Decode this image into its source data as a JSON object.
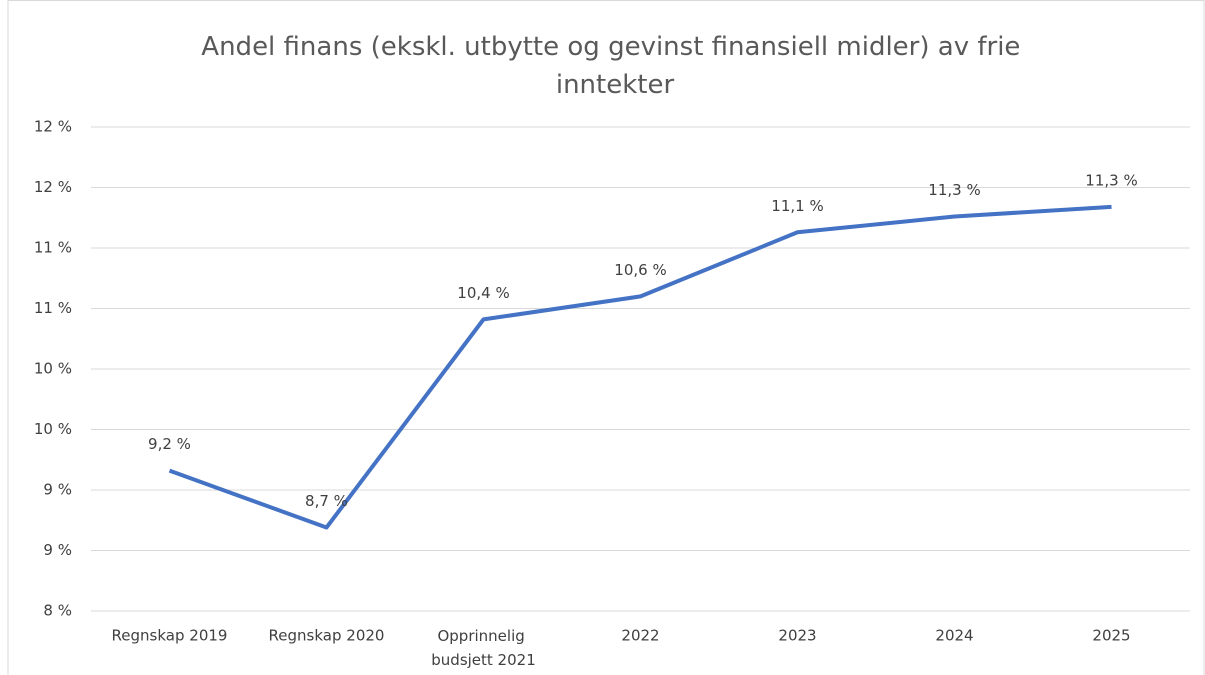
{
  "chart_data": {
    "type": "line",
    "title": "Andel finans (ekskl. utbytte og gevinst finansiell midler) av frie inntekter",
    "categories": [
      "Regnskap 2019",
      "Regnskap 2020",
      "Opprinnelig budsjett 2021",
      "2022",
      "2023",
      "2024",
      "2025"
    ],
    "series": [
      {
        "name": "Andel finans",
        "color": "#4472c4",
        "values": [
          9.16,
          8.69,
          10.41,
          10.6,
          11.13,
          11.26,
          11.34
        ],
        "value_labels": [
          "9,2 %",
          "8,7 %",
          "10,4 %",
          "10,6 %",
          "11,1 %",
          "11,3 %",
          "11,3 %"
        ]
      }
    ],
    "ylim": [
      8,
      12
    ],
    "yticks": [
      {
        "value": 8,
        "label": "8 %"
      },
      {
        "value": 8.5,
        "label": "9 %"
      },
      {
        "value": 9,
        "label": "9 %"
      },
      {
        "value": 9.5,
        "label": "10 %"
      },
      {
        "value": 10,
        "label": "10 %"
      },
      {
        "value": 10.5,
        "label": "11 %"
      },
      {
        "value": 11,
        "label": "11 %"
      },
      {
        "value": 11.5,
        "label": "12 %"
      },
      {
        "value": 12,
        "label": "12 %"
      }
    ],
    "grid": true
  }
}
